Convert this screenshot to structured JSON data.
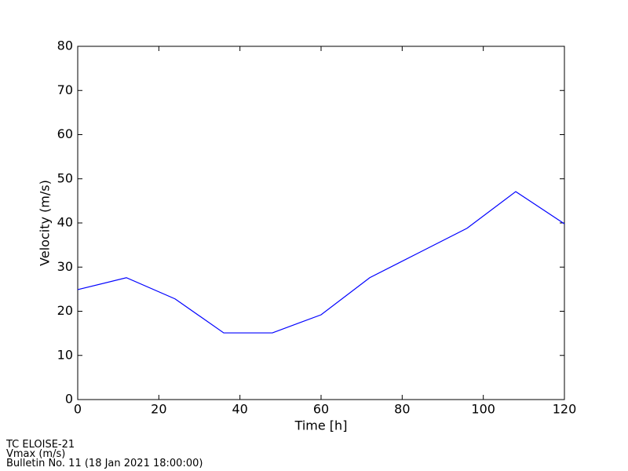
{
  "chart_data": {
    "type": "line",
    "x_label": "Time [h]",
    "y_label": "Velocity (m/s)",
    "x": [
      0,
      12,
      24,
      36,
      48,
      60,
      72,
      84,
      96,
      108,
      120
    ],
    "series": [
      {
        "name": "Vmax",
        "color": "#0000ff",
        "values": [
          24.9,
          27.6,
          22.8,
          15.1,
          15.1,
          19.2,
          27.6,
          33.2,
          38.8,
          47.1,
          39.8
        ]
      }
    ],
    "xlim": [
      0,
      120
    ],
    "xticks": [
      0,
      20,
      40,
      60,
      80,
      100,
      120
    ],
    "ylim": [
      0,
      80
    ],
    "yticks": [
      0,
      10,
      20,
      30,
      40,
      50,
      60,
      70,
      80
    ],
    "grid": false
  },
  "footer": [
    "TC ELOISE-21",
    "Vmax (m/s)",
    "Bulletin No. 11 (18 Jan 2021  18:00:00)"
  ]
}
